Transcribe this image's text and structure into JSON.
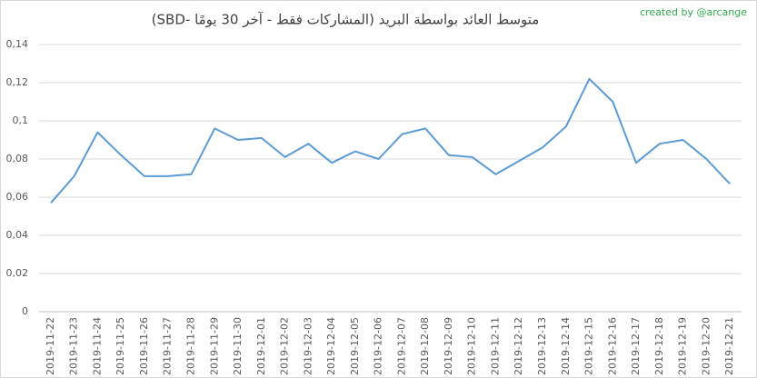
{
  "chart_data": {
    "type": "line",
    "title": "متوسط العائد بواسطة البريد (المشاركات فقط - آخر 30 يومًا -SBD)",
    "credit": "created by @arcange",
    "categories": [
      "2019-11-22",
      "2019-11-23",
      "2019-11-24",
      "2019-11-25",
      "2019-11-26",
      "2019-11-27",
      "2019-11-28",
      "2019-11-29",
      "2019-11-30",
      "2019-12-01",
      "2019-12-02",
      "2019-12-03",
      "2019-12-04",
      "2019-12-05",
      "2019-12-06",
      "2019-12-07",
      "2019-12-08",
      "2019-12-09",
      "2019-12-10",
      "2019-12-11",
      "2019-12-12",
      "2019-12-13",
      "2019-12-14",
      "2019-12-15",
      "2019-12-16",
      "2019-12-17",
      "2019-12-18",
      "2019-12-19",
      "2019-12-20",
      "2019-12-21"
    ],
    "values": [
      0.057,
      0.071,
      0.094,
      0.082,
      0.071,
      0.071,
      0.072,
      0.096,
      0.09,
      0.091,
      0.081,
      0.088,
      0.078,
      0.084,
      0.08,
      0.093,
      0.096,
      0.082,
      0.081,
      0.072,
      0.079,
      0.086,
      0.097,
      0.122,
      0.11,
      0.078,
      0.088,
      0.09,
      0.08,
      0.067
    ],
    "color": "#5b9bd5",
    "ylim": [
      0,
      0.14
    ],
    "yticks": [
      0,
      {
        "value": 0.02,
        "label": "0,02"
      },
      {
        "value": 0.04,
        "label": "0,04"
      },
      {
        "value": 0.06,
        "label": "0,06"
      },
      {
        "value": 0.08,
        "label": "0,08"
      },
      {
        "value": 0.1,
        "label": "0,1"
      },
      {
        "value": 0.12,
        "label": "0,12"
      },
      {
        "value": 0.14,
        "label": "0,14"
      }
    ],
    "grid": true
  }
}
